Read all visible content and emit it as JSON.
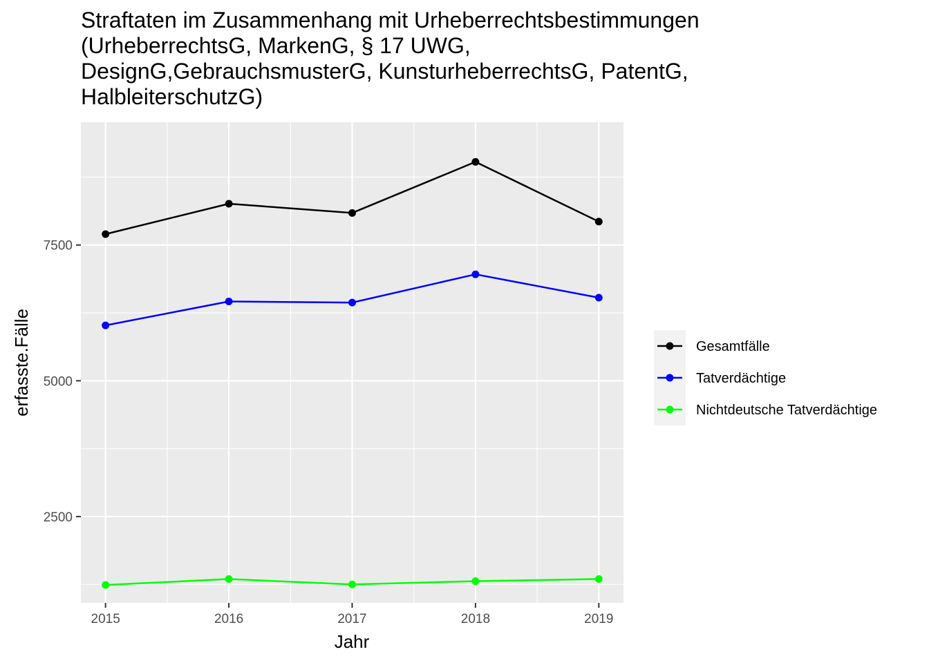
{
  "chart_data": {
    "type": "line",
    "title_lines": [
      "Straftaten im Zusammenhang mit Urheberrechtsbestimmungen",
      "(UrheberrechtsG, MarkenG, § 17 UWG,",
      "DesignG,GebrauchsmusterG, KunsturheberrechtsG, PatentG,",
      "HalbleiterschutzG)"
    ],
    "xlabel": "Jahr",
    "ylabel": "erfasste.Fälle",
    "x": [
      2015,
      2016,
      2017,
      2018,
      2019
    ],
    "xlim": [
      2014.8,
      2019.2
    ],
    "ylim": [
      910,
      9760
    ],
    "x_ticks": [
      2015,
      2016,
      2017,
      2018,
      2019
    ],
    "x_tick_labels": [
      "2015",
      "2016",
      "2017",
      "2018",
      "2019"
    ],
    "y_ticks": [
      2500,
      5000,
      7500
    ],
    "y_tick_labels": [
      "2500",
      "5000",
      "7500"
    ],
    "grid": true,
    "legend_position": "right",
    "series": [
      {
        "name": "Gesamtfälle",
        "color": "#000000",
        "values": [
          7700,
          8260,
          8090,
          9030,
          7930
        ]
      },
      {
        "name": "Tatverdächtige",
        "color": "#0000ff",
        "values": [
          6020,
          6460,
          6440,
          6960,
          6530
        ]
      },
      {
        "name": "Nichtdeutsche Tatverdächtige",
        "color": "#00ff00",
        "values": [
          1240,
          1350,
          1250,
          1310,
          1350
        ]
      }
    ]
  }
}
